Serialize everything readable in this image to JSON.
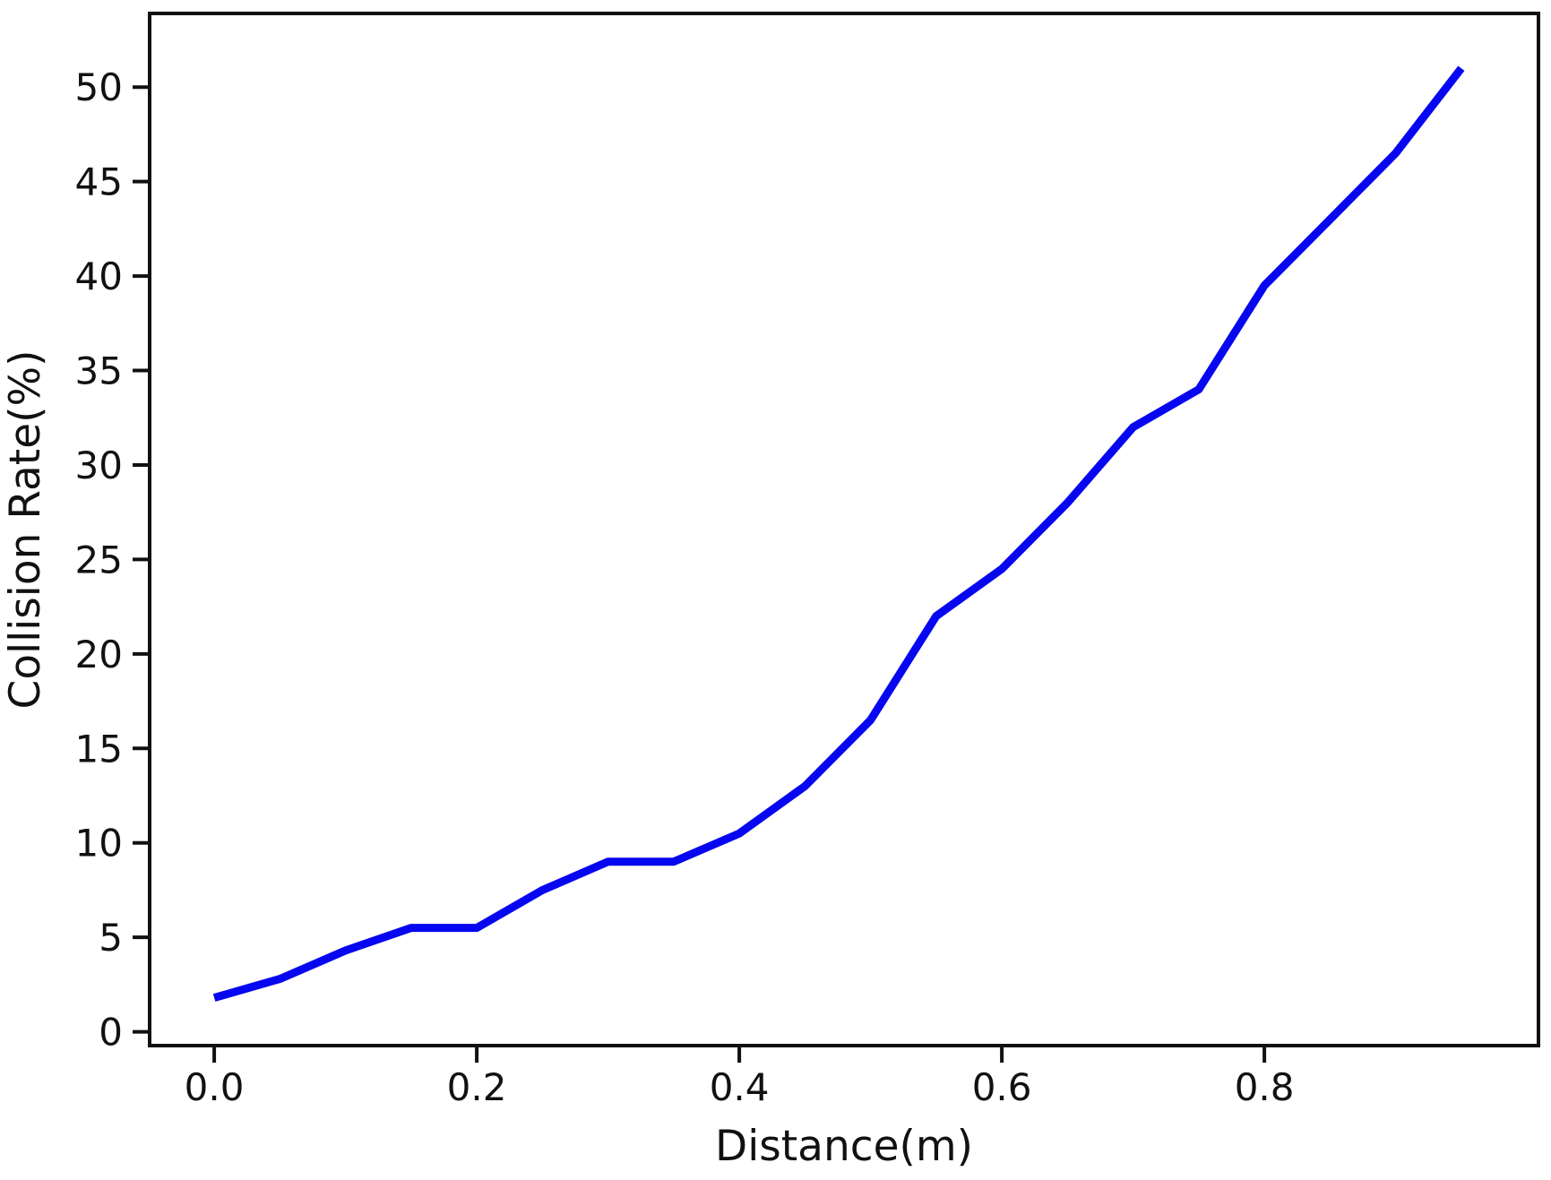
{
  "figure": {
    "background": "#ffffff",
    "spine_color": "#111111",
    "text_color": "#111111"
  },
  "chart_data": {
    "type": "line",
    "title": "",
    "xlabel": "Distance(m)",
    "ylabel": "Collision Rate(%)",
    "x": [
      0.0,
      0.05,
      0.1,
      0.15,
      0.2,
      0.25,
      0.3,
      0.35,
      0.4,
      0.45,
      0.5,
      0.55,
      0.6,
      0.65,
      0.7,
      0.75,
      0.8,
      0.85,
      0.9,
      0.95
    ],
    "series": [
      {
        "name": "Collision Rate",
        "color": "#0606f0",
        "line_width": 9,
        "values": [
          1.8,
          2.8,
          4.3,
          5.5,
          5.5,
          7.5,
          9.0,
          9.0,
          10.5,
          13.0,
          16.5,
          22.0,
          24.5,
          28.0,
          32.0,
          34.0,
          39.5,
          43.0,
          46.5,
          51.0
        ]
      }
    ],
    "xticks": {
      "values": [
        0.0,
        0.2,
        0.4,
        0.6,
        0.8
      ],
      "labels": [
        "0.0",
        "0.2",
        "0.4",
        "0.6",
        "0.8"
      ]
    },
    "yticks": {
      "values": [
        0,
        5,
        10,
        15,
        20,
        25,
        30,
        35,
        40,
        45,
        50
      ],
      "labels": [
        "0",
        "5",
        "10",
        "15",
        "20",
        "25",
        "30",
        "35",
        "40",
        "45",
        "50"
      ]
    },
    "xlim": [
      -0.0492,
      1.0088
    ],
    "ylim": [
      -0.73,
      53.9
    ],
    "grid": false,
    "legend_position": "none"
  }
}
